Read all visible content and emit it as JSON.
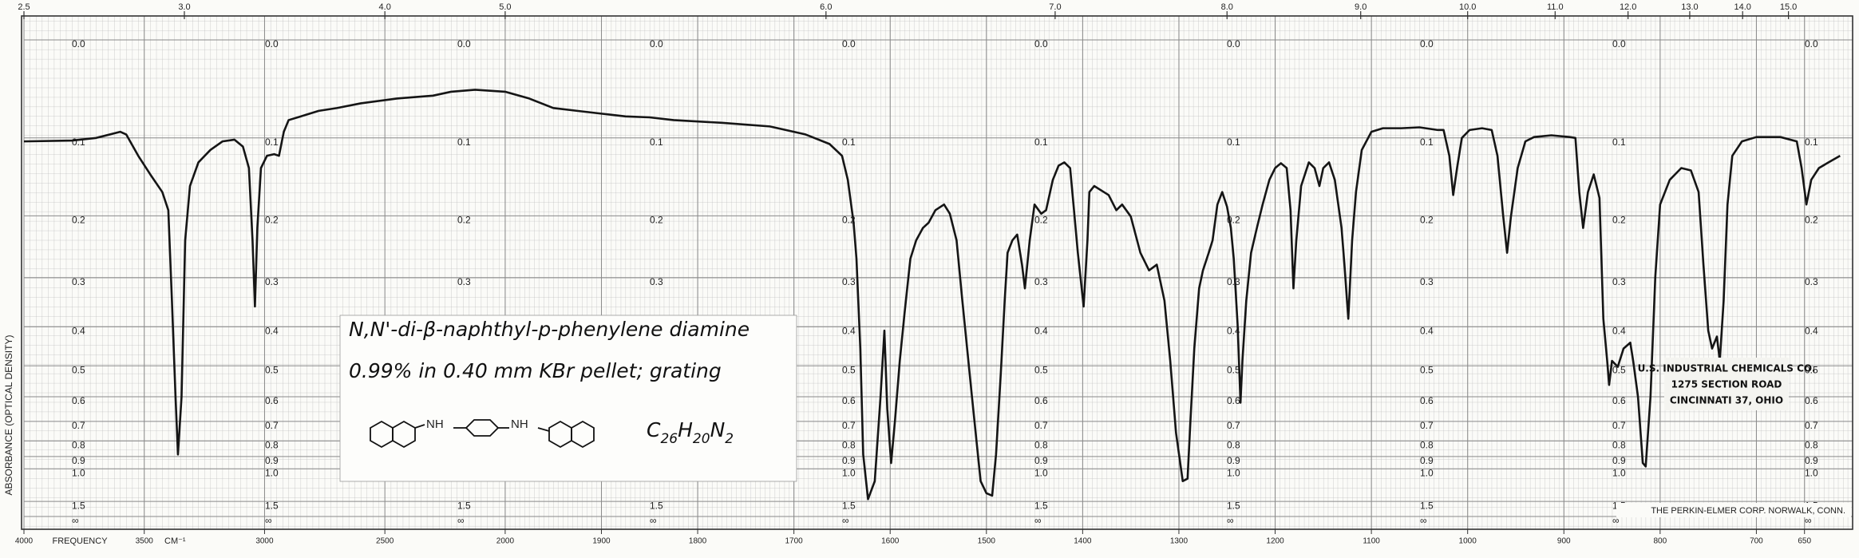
{
  "chart_data": {
    "type": "line",
    "y_label": "ABSORBANCE (OPTICAL DENSITY)",
    "x_label": "FREQUENCY",
    "x_unit": "CM⁻¹",
    "color": "#151515",
    "grid": true,
    "xscale": {
      "type": "piecewise-linear",
      "break": 2000,
      "compression": 4
    },
    "xlim": [
      4000,
      600
    ],
    "xticks": [
      4000,
      3500,
      3000,
      2500,
      2000,
      1900,
      1800,
      1700,
      1600,
      1500,
      1400,
      1300,
      1200,
      1100,
      1000,
      900,
      800,
      700,
      650
    ],
    "x2scale": "wavelength-microns",
    "x2ticks": [
      2.5,
      {
        "value": 3,
        "label": "3.0"
      },
      {
        "value": 4,
        "label": "4.0"
      },
      {
        "value": 5,
        "label": "5.0"
      },
      {
        "value": 6,
        "label": "6.0"
      },
      {
        "value": 7,
        "label": "7.0"
      },
      {
        "value": 8,
        "label": "8.0"
      },
      {
        "value": 9,
        "label": "9.0"
      },
      {
        "value": 10,
        "label": "10.0"
      },
      {
        "value": 11,
        "label": "11.0"
      },
      {
        "value": 12,
        "label": "12.0"
      },
      {
        "value": 13,
        "label": "13.0"
      },
      {
        "value": 14,
        "label": "14.0"
      },
      {
        "value": 15,
        "label": "15.0"
      }
    ],
    "yscale": "transmittance",
    "ylim": [
      0,
      null
    ],
    "yticks": [
      {
        "value": 0,
        "label": "0.0"
      },
      0.1,
      0.2,
      0.3,
      0.4,
      0.5,
      0.6,
      0.7,
      0.8,
      0.9,
      {
        "value": 1,
        "label": "1.0"
      },
      1.5,
      {
        "value": null,
        "label": "∞"
      }
    ],
    "x": [
      4000,
      3800,
      3700,
      3600,
      3575,
      3525,
      3475,
      3425,
      3400,
      3385,
      3370,
      3360,
      3345,
      3330,
      3310,
      3275,
      3225,
      3175,
      3125,
      3090,
      3065,
      3050,
      3040,
      3030,
      3015,
      2990,
      2960,
      2940,
      2920,
      2900,
      2850,
      2775,
      2700,
      2600,
      2450,
      2300,
      2225,
      2125,
      2000,
      1975,
      1950,
      1925,
      1900,
      1875,
      1850,
      1825,
      1775,
      1725,
      1688,
      1663,
      1650,
      1644,
      1638,
      1635,
      1631,
      1628,
      1623,
      1616,
      1610,
      1606,
      1603,
      1599,
      1595,
      1590,
      1585,
      1579,
      1573,
      1566,
      1560,
      1553,
      1544,
      1538,
      1531,
      1525,
      1515,
      1506,
      1500,
      1494,
      1490,
      1485,
      1481,
      1478,
      1473,
      1468,
      1463,
      1460,
      1455,
      1450,
      1443,
      1438,
      1431,
      1425,
      1419,
      1413,
      1409,
      1405,
      1401,
      1399,
      1395,
      1393,
      1388,
      1378,
      1373,
      1365,
      1359,
      1350,
      1340,
      1331,
      1323,
      1315,
      1309,
      1303,
      1296,
      1291,
      1288,
      1284,
      1279,
      1275,
      1269,
      1265,
      1260,
      1255,
      1250,
      1246,
      1243,
      1239,
      1236,
      1234,
      1230,
      1225,
      1219,
      1213,
      1206,
      1200,
      1194,
      1188,
      1184,
      1181,
      1178,
      1173,
      1165,
      1159,
      1154,
      1150,
      1144,
      1138,
      1131,
      1128,
      1124,
      1120,
      1116,
      1110,
      1100,
      1088,
      1069,
      1050,
      1031,
      1025,
      1019,
      1015,
      1011,
      1006,
      998,
      985,
      975,
      969,
      963,
      959,
      955,
      948,
      940,
      931,
      913,
      894,
      888,
      884,
      880,
      875,
      869,
      863,
      859,
      855,
      853,
      850,
      844,
      838,
      831,
      828,
      823,
      818,
      815,
      810,
      805,
      800,
      790,
      778,
      768,
      760,
      755,
      750,
      746,
      741,
      738,
      734,
      730,
      725,
      715,
      700,
      675,
      658,
      653,
      648,
      643,
      635,
      625,
      613
    ],
    "values": [
      0.104,
      0.103,
      0.1,
      0.093,
      0.096,
      0.121,
      0.144,
      0.167,
      0.192,
      0.344,
      0.6,
      0.886,
      0.6,
      0.237,
      0.159,
      0.129,
      0.114,
      0.104,
      0.102,
      0.11,
      0.136,
      0.237,
      0.356,
      0.218,
      0.136,
      0.121,
      0.119,
      0.121,
      0.093,
      0.08,
      0.076,
      0.07,
      0.067,
      0.062,
      0.057,
      0.054,
      0.05,
      0.048,
      0.05,
      0.057,
      0.067,
      0.07,
      0.073,
      0.076,
      0.077,
      0.08,
      0.083,
      0.087,
      0.096,
      0.107,
      0.121,
      0.151,
      0.21,
      0.267,
      0.453,
      0.886,
      1.44,
      1.13,
      0.6,
      0.409,
      0.646,
      0.95,
      0.697,
      0.486,
      0.369,
      0.267,
      0.237,
      0.218,
      0.21,
      0.192,
      0.184,
      0.197,
      0.237,
      0.344,
      0.6,
      1.13,
      1.31,
      1.36,
      0.886,
      0.52,
      0.344,
      0.257,
      0.237,
      0.228,
      0.277,
      0.32,
      0.237,
      0.184,
      0.197,
      0.192,
      0.151,
      0.133,
      0.129,
      0.136,
      0.192,
      0.257,
      0.32,
      0.356,
      0.237,
      0.167,
      0.159,
      0.167,
      0.171,
      0.192,
      0.184,
      0.201,
      0.257,
      0.287,
      0.277,
      0.344,
      0.486,
      0.755,
      1.13,
      1.1,
      0.697,
      0.453,
      0.32,
      0.287,
      0.257,
      0.237,
      0.184,
      0.167,
      0.187,
      0.218,
      0.267,
      0.395,
      0.622,
      0.486,
      0.344,
      0.257,
      0.218,
      0.184,
      0.151,
      0.136,
      0.13,
      0.136,
      0.192,
      0.32,
      0.237,
      0.159,
      0.129,
      0.136,
      0.159,
      0.136,
      0.129,
      0.151,
      0.218,
      0.277,
      0.382,
      0.237,
      0.167,
      0.114,
      0.093,
      0.089,
      0.089,
      0.088,
      0.091,
      0.091,
      0.121,
      0.171,
      0.136,
      0.1,
      0.091,
      0.089,
      0.091,
      0.121,
      0.201,
      0.257,
      0.201,
      0.136,
      0.104,
      0.099,
      0.097,
      0.099,
      0.1,
      0.167,
      0.218,
      0.167,
      0.144,
      0.175,
      0.382,
      0.486,
      0.559,
      0.486,
      0.503,
      0.453,
      0.438,
      0.486,
      0.6,
      0.95,
      0.979,
      0.6,
      0.298,
      0.184,
      0.151,
      0.136,
      0.139,
      0.167,
      0.277,
      0.409,
      0.453,
      0.423,
      0.486,
      0.344,
      0.184,
      0.121,
      0.104,
      0.099,
      0.099,
      0.104,
      0.136,
      0.184,
      0.151,
      0.136,
      0.129,
      0.121
    ],
    "annotations": {
      "compound": "N,N'-di-β-naphthyl-p-phenylene diamine",
      "sample": "0.99% in 0.40 mm KBr pellet; grating",
      "structure_labels": [
        "NH",
        "NH"
      ],
      "formula": [
        {
          "symbol": "C",
          "count": 26
        },
        {
          "symbol": "H",
          "count": 20
        },
        {
          "symbol": "N",
          "count": 2
        }
      ],
      "stamp": [
        "U.S. INDUSTRIAL CHEMICALS CO.",
        "1275 SECTION ROAD",
        "CINCINNATI 37, OHIO"
      ],
      "credit": "THE PERKIN-ELMER CORP. NORWALK, CONN."
    }
  }
}
